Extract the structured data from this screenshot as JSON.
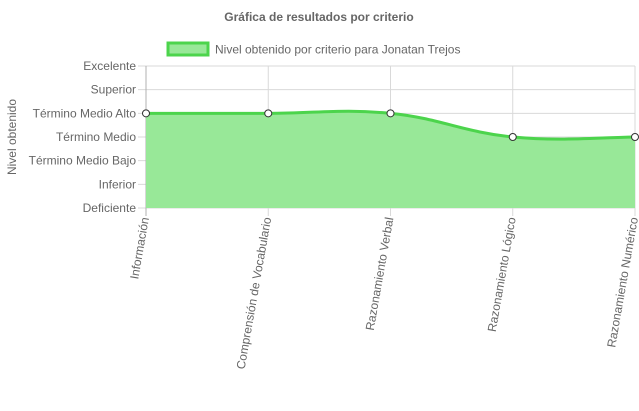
{
  "chart_data": {
    "type": "area",
    "title": "Gráfica de resultados por criterio",
    "ylabel": "Nivel obtenido",
    "xlabel": "",
    "categories": [
      "Información",
      "Comprensión de Vocabulario",
      "Razonamiento Verbal",
      "Razonamiento Lógico",
      "Razonamiento Numérico"
    ],
    "y_levels": [
      "Deficiente",
      "Inferior",
      "Término Medio Bajo",
      "Término Medio",
      "Término Medio Alto",
      "Superior",
      "Excelente"
    ],
    "ylim": [
      0,
      6
    ],
    "series": [
      {
        "name": "Nivel obtenido por criterio para Jonatan Trejos",
        "values": [
          4,
          4,
          4,
          3,
          3
        ],
        "value_labels": [
          "Término Medio Alto",
          "Término Medio Alto",
          "Término Medio Alto",
          "Término Medio",
          "Término Medio"
        ],
        "fill_color": "#98e898",
        "line_color": "#4cd44c"
      }
    ],
    "grid": true,
    "legend_position": "top"
  }
}
